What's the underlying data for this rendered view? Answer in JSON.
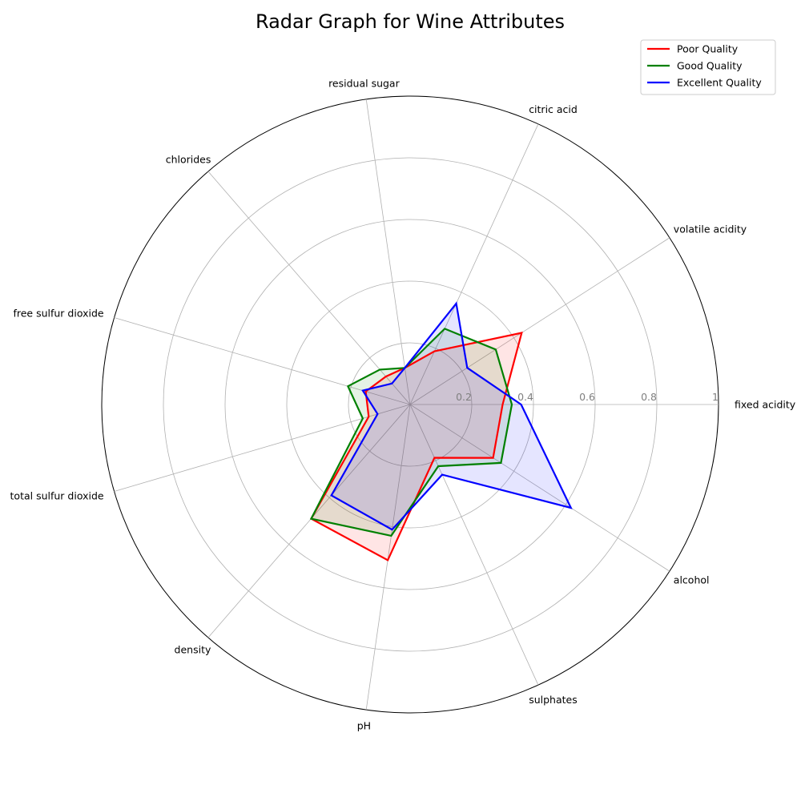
{
  "chart_data": {
    "type": "radar",
    "title": "Radar Graph for Wine Attributes",
    "axes": [
      "fixed acidity",
      "volatile acidity",
      "citric acid",
      "residual sugar",
      "chlorides",
      "free sulfur dioxide",
      "total sulfur dioxide",
      "density",
      "pH",
      "sulphates",
      "alcohol"
    ],
    "rlim": [
      0,
      1
    ],
    "rticks": [
      0.2,
      0.4,
      0.6,
      0.8,
      1
    ],
    "rtick_labels": [
      "0.2",
      "0.4",
      "0.6",
      "0.8",
      "1"
    ],
    "grid": true,
    "legend_position": "top-right",
    "series": [
      {
        "name": "Poor Quality",
        "color": "#ff0000",
        "values": [
          0.3,
          0.43,
          0.19,
          0.12,
          0.12,
          0.15,
          0.14,
          0.49,
          0.51,
          0.19,
          0.32
        ]
      },
      {
        "name": "Good Quality",
        "color": "#008000",
        "values": [
          0.33,
          0.33,
          0.27,
          0.12,
          0.15,
          0.21,
          0.16,
          0.49,
          0.43,
          0.22,
          0.35
        ]
      },
      {
        "name": "Excellent Quality",
        "color": "#0000ff",
        "values": [
          0.36,
          0.22,
          0.36,
          0.12,
          0.09,
          0.16,
          0.11,
          0.39,
          0.41,
          0.25,
          0.62
        ]
      }
    ]
  }
}
